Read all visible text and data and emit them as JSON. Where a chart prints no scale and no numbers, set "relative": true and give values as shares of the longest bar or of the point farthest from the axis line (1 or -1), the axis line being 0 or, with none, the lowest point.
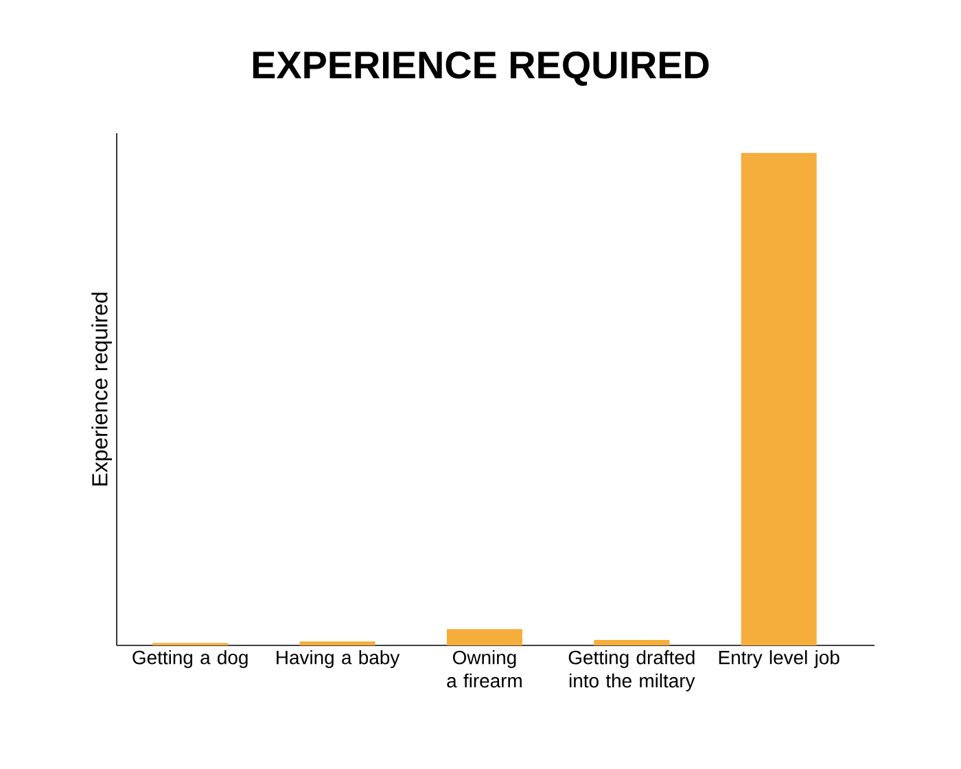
{
  "chart_data": {
    "type": "bar",
    "title": "EXPERIENCE REQUIRED",
    "ylabel": "Experience required",
    "categories": [
      "Getting a dog",
      "Having a baby",
      "Owning a firearm",
      "Getting drafted into the miltary",
      "Entry level job"
    ],
    "values": [
      0.005,
      0.008,
      0.033,
      0.011,
      1
    ],
    "color": "#f5ad3c",
    "relative": true
  }
}
